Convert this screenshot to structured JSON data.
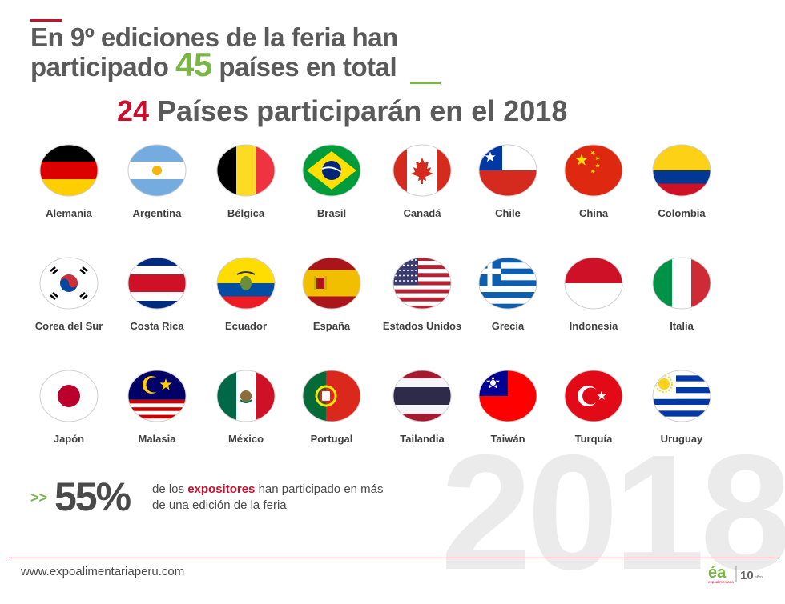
{
  "header": {
    "line1": "En 9º ediciones de la feria han",
    "line2_pre": "participado ",
    "line2_num": "45",
    "line2_post": " países en total"
  },
  "subtitle": {
    "num": "24",
    "text": " Países participarán en el 2018"
  },
  "big_year": "2018",
  "countries": [
    {
      "name": "Alemania",
      "flag": "germany"
    },
    {
      "name": "Argentina",
      "flag": "argentina"
    },
    {
      "name": "Bélgica",
      "flag": "belgium"
    },
    {
      "name": "Brasil",
      "flag": "brazil"
    },
    {
      "name": "Canadá",
      "flag": "canada"
    },
    {
      "name": "Chile",
      "flag": "chile"
    },
    {
      "name": "China",
      "flag": "china"
    },
    {
      "name": "Colombia",
      "flag": "colombia"
    },
    {
      "name": "Corea del Sur",
      "flag": "korea"
    },
    {
      "name": "Costa Rica",
      "flag": "costarica"
    },
    {
      "name": "Ecuador",
      "flag": "ecuador"
    },
    {
      "name": "España",
      "flag": "spain"
    },
    {
      "name": "Estados Unidos",
      "flag": "usa"
    },
    {
      "name": "Grecia",
      "flag": "greece"
    },
    {
      "name": "Indonesia",
      "flag": "indonesia"
    },
    {
      "name": "Italia",
      "flag": "italy"
    },
    {
      "name": "Japón",
      "flag": "japan"
    },
    {
      "name": "Malasia",
      "flag": "malaysia"
    },
    {
      "name": "México",
      "flag": "mexico"
    },
    {
      "name": "Portugal",
      "flag": "portugal"
    },
    {
      "name": "Tailandia",
      "flag": "thailand"
    },
    {
      "name": "Taiwán",
      "flag": "taiwan"
    },
    {
      "name": "Turquía",
      "flag": "turkey"
    },
    {
      "name": "Uruguay",
      "flag": "uruguay"
    }
  ],
  "stat": {
    "arrows": ">>",
    "value": "55%",
    "desc_pre": "de los ",
    "desc_highlight": "expositores",
    "desc_post": " han participado en más",
    "desc_line2": "de una edición de la feria"
  },
  "footer": {
    "url": "www.expoalimentariaperu.com",
    "logo_text": "éa",
    "logo_small": "expoalimentaria",
    "years": "10",
    "years_label": "años"
  },
  "colors": {
    "red": "#c8102e",
    "green": "#7ab648",
    "text": "#5a5a5a"
  }
}
